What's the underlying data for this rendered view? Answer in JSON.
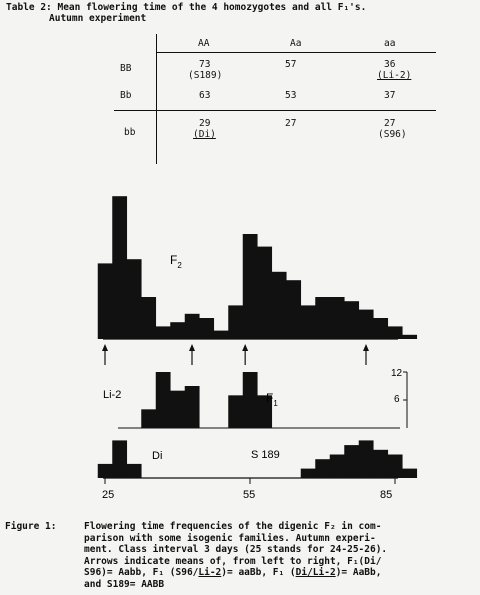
{
  "table": {
    "caption_line1": "Table 2: Mean flowering time of the 4 homozygotes and all F₁'s.",
    "caption_line2": "Autumn experiment",
    "col_headers": [
      "AA",
      "Aa",
      "aa"
    ],
    "rows": [
      {
        "label": "BB",
        "cells": [
          {
            "value": "73",
            "note": "(S189)",
            "underline_note": false
          },
          {
            "value": "57",
            "note": "",
            "underline_note": false
          },
          {
            "value": "36",
            "note": "(Li-2)",
            "underline_note": true
          }
        ]
      },
      {
        "label": "Bb",
        "cells": [
          {
            "value": "63",
            "note": "",
            "underline_note": false
          },
          {
            "value": "53",
            "note": "",
            "underline_note": false
          },
          {
            "value": "37",
            "note": "",
            "underline_note": false
          }
        ]
      },
      {
        "label": "bb",
        "cells": [
          {
            "value": "29",
            "note": "(Di)",
            "underline_note": true
          },
          {
            "value": "27",
            "note": "",
            "underline_note": false
          },
          {
            "value": "27",
            "note": "(S96)",
            "underline_note": false
          }
        ]
      }
    ]
  },
  "figure": {
    "f2_label": "F",
    "f2_sub": "2",
    "f1_label": "F",
    "f1_sub": "1",
    "li2_label": "Li-2",
    "di_label": "Di",
    "s189_label": "S 189",
    "scale_labels": [
      "12",
      "6"
    ],
    "x_tick_labels": [
      "25",
      "55",
      "85"
    ]
  },
  "chart_data": [
    {
      "type": "bar",
      "series": [
        {
          "name": "F2",
          "bin_start": 25,
          "bin_width": 3,
          "values": [
            18,
            34,
            19,
            10,
            3,
            4,
            6,
            5,
            2,
            8,
            25,
            22,
            16,
            14,
            8,
            10,
            10,
            9,
            7,
            5,
            3,
            1
          ]
        }
      ],
      "arrows_at": [
        25,
        43,
        54,
        79
      ]
    },
    {
      "type": "bar",
      "series": [
        {
          "name": "Li-2",
          "bin_start": 34,
          "bin_width": 3,
          "values": [
            4,
            12,
            8,
            9
          ]
        },
        {
          "name": "F1",
          "bin_start": 52,
          "bin_width": 3,
          "values": [
            7,
            12,
            7
          ]
        }
      ],
      "scale_max": 12
    },
    {
      "type": "bar",
      "series": [
        {
          "name": "Di",
          "bin_start": 25,
          "bin_width": 3,
          "values": [
            3,
            8,
            3
          ]
        },
        {
          "name": "S 189",
          "bin_start": 67,
          "bin_width": 3,
          "values": [
            2,
            4,
            5,
            7,
            8,
            6,
            5,
            2
          ]
        }
      ],
      "xlim": [
        25,
        85
      ]
    }
  ],
  "figure_caption": {
    "label": "Figure 1:",
    "line1": "Flowering time frequencies of the digenic F₂ in com-",
    "line2": "parison with some isogenic families. Autumn experi-",
    "line3": "ment. Class interval 3 days (25 stands for 24-25-26).",
    "line4": "Arrows indicate means of, from left to right, F₁(Di/",
    "line5_a": "S96)= Aabb, F₁ (S96/",
    "line5_b": "Li-2",
    "line5_c": ")= aaBb, F₁ (",
    "line5_d": "Di/Li-2",
    "line5_e": ")= AaBb,",
    "line6": "and S189= AABB"
  }
}
